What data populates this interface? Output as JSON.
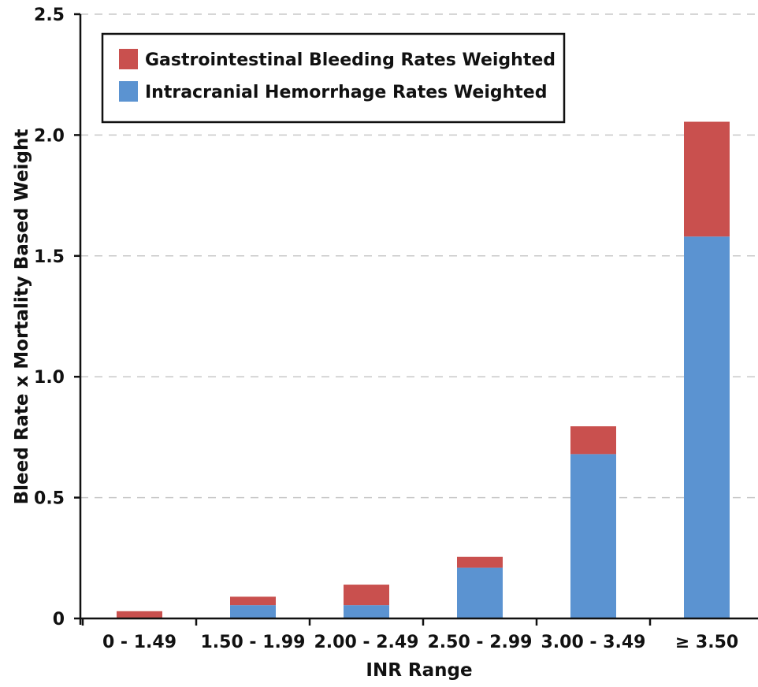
{
  "chart_data": {
    "type": "bar",
    "stacked": true,
    "categories": [
      "0 - 1.49",
      "1.50 - 1.99",
      "2.00 - 2.49",
      "2.50 - 2.99",
      "3.00 - 3.49",
      "≥ 3.50"
    ],
    "series": [
      {
        "name": "Intracranial Hemorrhage Rates Weighted",
        "color": "#5b93d1",
        "values": [
          0.0,
          0.055,
          0.055,
          0.21,
          0.68,
          1.58
        ]
      },
      {
        "name": "Gastrointestinal Bleeding Rates Weighted",
        "color": "#c9504e",
        "values": [
          0.03,
          0.035,
          0.085,
          0.045,
          0.115,
          0.475
        ]
      }
    ],
    "xlabel": "INR Range",
    "ylabel": "Bleed Rate x Mortality Based Weight",
    "ylim": [
      0,
      2.5
    ],
    "yticks": [
      {
        "value": 0,
        "label": "0"
      },
      {
        "value": 0.5,
        "label": "0.5"
      },
      {
        "value": 1.0,
        "label": "1.0"
      },
      {
        "value": 1.5,
        "label": "1.5"
      },
      {
        "value": 2.0,
        "label": "2.0"
      },
      {
        "value": 2.5,
        "label": "2.5"
      }
    ],
    "grid": "horizontal dashed",
    "legend": {
      "placement": "top-left",
      "order": [
        "Gastrointestinal Bleeding Rates Weighted",
        "Intracranial Hemorrhage Rates Weighted"
      ]
    }
  }
}
